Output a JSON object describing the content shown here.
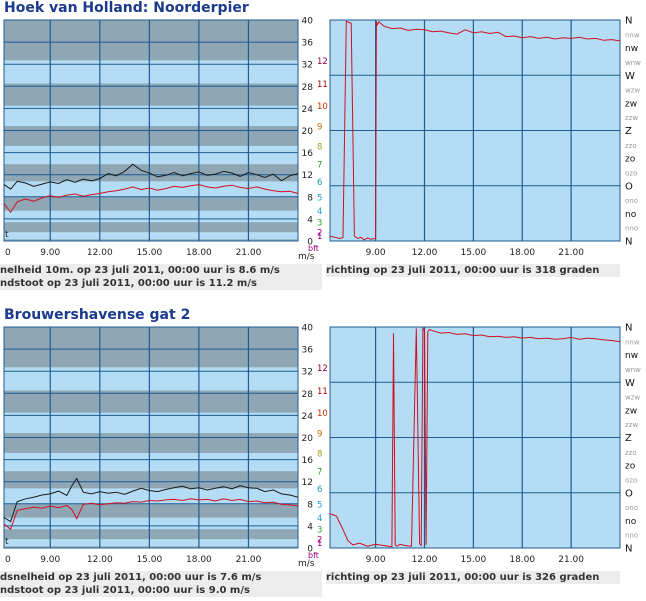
{
  "colors": {
    "plot_bg": "#b4dcf4",
    "band": "#8fa7b5",
    "grid": "#1f5c92",
    "gust_line": "#1a1a1a",
    "speed_line": "#d01020",
    "dir_line": "#d01020",
    "info_bg": "#ececec",
    "title": "#1a3a8c"
  },
  "beaufort_colors": [
    "#a00080",
    "#a00080",
    "#2c9a2c",
    "#1aa0d0",
    "#1aa0d0",
    "#1aa0a0",
    "#2c9a2c",
    "#9a9a20",
    "#c07000",
    "#c03000",
    "#a00000",
    "#8a0040",
    "#8000a0"
  ],
  "stations": [
    {
      "title": "Hoek van Holland: Noorderpier",
      "speed_info": "nelheid 10m. op 23 juli 2011, 00:00 uur is 8.6 m/s",
      "gust_info": "ndstoot op 23 juli 2011, 00:00 uur is 11.2 m/s",
      "dir_info": "richting op 23 juli 2011, 00:00 uur is 318 graden"
    },
    {
      "title": "Brouwershavense gat 2",
      "speed_info": "dsnelheid op 23 juli 2011, 00:00 uur is 7.6 m/s",
      "gust_info": "ndstoot op 23 juli 2011, 00:00 uur is 9.0 m/s",
      "dir_info": "richting op 23 juli 2011, 00:00 uur is 326 graden"
    }
  ],
  "axis_labels": {
    "unit_ms": "m/s",
    "unit_bft": "bft",
    "t_marker": "t"
  },
  "chart_data": [
    {
      "type": "line",
      "title": "Hoek van Holland: Noorderpier (wind speed)",
      "x_ticks": [
        "0",
        "9.00",
        "12.00",
        "15.00",
        "18.00",
        "21.00"
      ],
      "x_tick_hours": [
        0,
        9,
        12,
        15,
        18,
        21
      ],
      "xlim": [
        6.2,
        24
      ],
      "ylabel": "m/s",
      "y_ticks": [
        0,
        4,
        8,
        12,
        16,
        20,
        24,
        28,
        32,
        36,
        40
      ],
      "ylim": [
        0,
        40
      ],
      "bft_ticks": [
        "1",
        "2",
        "3",
        "4",
        "5",
        "6",
        "7",
        "8",
        "9",
        "10",
        "11",
        "12"
      ],
      "bft_values": [
        0.3,
        1.6,
        3.4,
        5.5,
        8.0,
        10.8,
        13.9,
        17.2,
        20.8,
        24.5,
        28.5,
        32.7
      ],
      "bands": [
        [
          0,
          0.3
        ],
        [
          1.6,
          3.4
        ],
        [
          5.5,
          8.0
        ],
        [
          10.8,
          13.9
        ],
        [
          17.2,
          20.8
        ],
        [
          24.5,
          28.5
        ],
        [
          32.7,
          40
        ]
      ],
      "series": [
        {
          "name": "",
          "color_key": "gust_line",
          "x": [
            6.2,
            6.6,
            7,
            7.5,
            8,
            8.5,
            9,
            9.5,
            10,
            10.5,
            11,
            11.5,
            12,
            12.5,
            13,
            13.5,
            14,
            14.5,
            15,
            15.5,
            16,
            16.5,
            17,
            17.5,
            18,
            18.5,
            19,
            19.5,
            20,
            20.5,
            21,
            21.5,
            22,
            22.5,
            23,
            23.5,
            24
          ],
          "y": [
            10.2,
            9.4,
            10.8,
            10.5,
            9.9,
            10.3,
            10.7,
            10.4,
            11.1,
            10.6,
            11.2,
            10.9,
            11.3,
            12.2,
            11.8,
            12.6,
            13.9,
            12.8,
            12.3,
            11.6,
            11.9,
            12.4,
            11.8,
            12.2,
            12.5,
            11.9,
            12.1,
            12.6,
            12.3,
            11.7,
            12.4,
            12.0,
            11.5,
            12.1,
            10.9,
            11.8,
            12.2
          ]
        },
        {
          "name": "",
          "color_key": "speed_line",
          "x": [
            6.2,
            6.6,
            7,
            7.5,
            8,
            8.5,
            9,
            9.5,
            10,
            10.5,
            11,
            11.5,
            12,
            12.5,
            13,
            13.5,
            14,
            14.5,
            15,
            15.5,
            16,
            16.5,
            17,
            17.5,
            18,
            18.5,
            19,
            19.5,
            20,
            20.5,
            21,
            21.5,
            22,
            22.5,
            23,
            23.5,
            24
          ],
          "y": [
            6.8,
            5.2,
            7.1,
            7.6,
            7.2,
            7.8,
            8.2,
            7.9,
            8.3,
            8.5,
            8.1,
            8.4,
            8.6,
            8.9,
            9.1,
            9.4,
            9.8,
            9.3,
            9.6,
            9.2,
            9.5,
            9.9,
            9.7,
            10.0,
            10.2,
            9.8,
            9.6,
            9.9,
            10.1,
            9.7,
            9.5,
            9.8,
            9.4,
            9.1,
            8.9,
            9.0,
            8.6
          ]
        }
      ]
    },
    {
      "type": "line",
      "title": "Hoek van Holland: Noorderpier (wind direction)",
      "x_ticks": [
        "9.00",
        "12.00",
        "15.00",
        "18.00",
        "21.00"
      ],
      "x_tick_hours": [
        9,
        12,
        15,
        18,
        21
      ],
      "xlim": [
        6.2,
        24
      ],
      "y_ticks": [
        "N",
        "nnw",
        "nw",
        "wnw",
        "W",
        "wzw",
        "zw",
        "zzw",
        "Z",
        "zzo",
        "zo",
        "ozo",
        "O",
        "ono",
        "no",
        "nno",
        "N"
      ],
      "ylim": [
        0,
        360
      ],
      "series": [
        {
          "name": "",
          "color_key": "dir_line",
          "x": [
            6.2,
            6.5,
            6.8,
            7.0,
            7.2,
            7.35,
            7.5,
            7.7,
            7.9,
            8.1,
            8.3,
            8.5,
            8.7,
            9.0,
            9.05,
            9.1,
            9.2,
            9.5,
            10,
            10.5,
            11,
            11.5,
            12,
            12.5,
            13,
            13.5,
            14,
            14.5,
            15,
            15.5,
            16,
            16.5,
            17,
            17.5,
            18,
            18.5,
            19,
            19.5,
            20,
            20.5,
            21,
            21.5,
            22,
            22.5,
            23,
            23.5,
            24
          ],
          "y": [
            8,
            6,
            4,
            6,
            358,
            356,
            355,
            8,
            4,
            6,
            2,
            5,
            3,
            4,
            358,
            352,
            357,
            350,
            346,
            347,
            343,
            345,
            344,
            341,
            342,
            339,
            337,
            344,
            339,
            341,
            338,
            340,
            333,
            334,
            331,
            333,
            330,
            332,
            329,
            331,
            330,
            332,
            329,
            330,
            327,
            328,
            326
          ]
        }
      ]
    },
    {
      "type": "line",
      "title": "Brouwershavense gat 2 (wind speed)",
      "x_ticks": [
        "0",
        "9.00",
        "12.00",
        "15.00",
        "18.00",
        "21.00"
      ],
      "x_tick_hours": [
        0,
        9,
        12,
        15,
        18,
        21
      ],
      "xlim": [
        6.2,
        24
      ],
      "ylabel": "m/s",
      "y_ticks": [
        0,
        4,
        8,
        12,
        16,
        20,
        24,
        28,
        32,
        36,
        40
      ],
      "ylim": [
        0,
        40
      ],
      "series": [
        {
          "name": "",
          "color_key": "gust_line",
          "x": [
            6.2,
            6.6,
            7,
            7.5,
            8,
            8.5,
            9,
            9.5,
            10,
            10.3,
            10.6,
            11,
            11.5,
            12,
            12.5,
            13,
            13.5,
            14,
            14.5,
            15,
            15.5,
            16,
            16.5,
            17,
            17.5,
            18,
            18.5,
            19,
            19.5,
            20,
            20.5,
            21,
            21.5,
            22,
            22.5,
            23,
            23.5,
            24
          ],
          "y": [
            5.5,
            4.8,
            8.4,
            8.9,
            9.2,
            9.6,
            9.8,
            10.3,
            9.5,
            11.2,
            12.6,
            10.1,
            9.8,
            10.2,
            9.9,
            10.1,
            9.7,
            10.3,
            10.8,
            10.4,
            10.2,
            10.6,
            10.9,
            11.2,
            10.7,
            10.9,
            10.5,
            10.8,
            11.1,
            10.7,
            11.3,
            10.9,
            10.8,
            10.2,
            10.5,
            9.8,
            9.6,
            9.2
          ]
        },
        {
          "name": "",
          "color_key": "speed_line",
          "x": [
            6.2,
            6.6,
            7,
            7.5,
            8,
            8.5,
            9,
            9.5,
            10,
            10.3,
            10.6,
            11,
            11.5,
            12,
            12.5,
            13,
            13.5,
            14,
            14.5,
            15,
            15.5,
            16,
            16.5,
            17,
            17.5,
            18,
            18.5,
            19,
            19.5,
            20,
            20.5,
            21,
            21.5,
            22,
            22.5,
            23,
            23.5,
            24
          ],
          "y": [
            4.3,
            3.4,
            6.8,
            7.1,
            7.4,
            7.2,
            7.6,
            7.3,
            7.7,
            7.0,
            5.3,
            7.9,
            8.1,
            7.8,
            8.0,
            8.2,
            8.1,
            8.4,
            8.3,
            8.6,
            8.5,
            8.7,
            8.8,
            8.6,
            8.9,
            8.7,
            8.8,
            8.5,
            8.9,
            8.6,
            8.8,
            8.4,
            8.5,
            8.2,
            8.3,
            7.9,
            7.8,
            7.6
          ]
        }
      ]
    },
    {
      "type": "line",
      "title": "Brouwershavense gat 2 (wind direction)",
      "x_ticks": [
        "9.00",
        "12.00",
        "15.00",
        "18.00",
        "21.00"
      ],
      "x_tick_hours": [
        9,
        12,
        15,
        18,
        21
      ],
      "xlim": [
        6.2,
        24
      ],
      "y_ticks": [
        "N",
        "nnw",
        "nw",
        "wnw",
        "W",
        "wzw",
        "zw",
        "zzw",
        "Z",
        "zzo",
        "zo",
        "ozo",
        "O",
        "ono",
        "no",
        "nno",
        "N"
      ],
      "ylim": [
        0,
        360
      ],
      "series": [
        {
          "name": "",
          "color_key": "dir_line",
          "x": [
            6.2,
            6.6,
            7,
            7.3,
            7.6,
            8,
            8.5,
            9,
            9.5,
            10,
            10.1,
            10.2,
            10.3,
            10.5,
            10.8,
            11.2,
            11.5,
            11.7,
            11.8,
            11.9,
            12.0,
            12.1,
            12.2,
            12.3,
            12.5,
            13,
            13.5,
            14,
            14.5,
            15,
            15.5,
            16,
            16.5,
            17,
            17.5,
            18,
            18.5,
            19,
            19.5,
            20,
            20.5,
            21,
            21.5,
            22,
            22.5,
            23,
            23.5,
            24
          ],
          "y": [
            56,
            52,
            30,
            12,
            5,
            8,
            3,
            6,
            4,
            2,
            350,
            5,
            3,
            6,
            4,
            3,
            358,
            7,
            4,
            358,
            354,
            5,
            352,
            356,
            354,
            350,
            351,
            348,
            349,
            346,
            347,
            344,
            345,
            343,
            344,
            342,
            343,
            341,
            342,
            340,
            341,
            343,
            340,
            342,
            341,
            339,
            338,
            336
          ]
        }
      ]
    }
  ]
}
